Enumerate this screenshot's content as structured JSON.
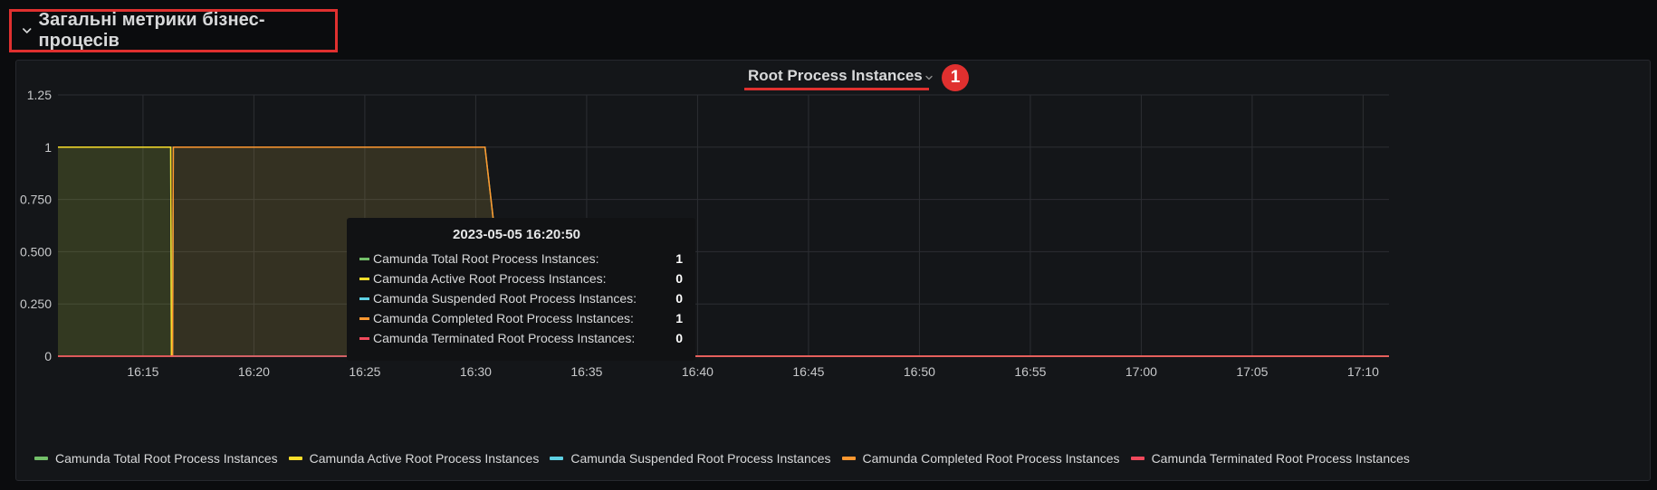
{
  "row": {
    "title": "Загальні метрики бізнес-процесів"
  },
  "panel": {
    "title": "Root Process Instances",
    "badge": "1"
  },
  "tooltip": {
    "time": "2023-05-05 16:20:50",
    "rows": [
      {
        "name": "Camunda Total Root Process Instances:",
        "value": "1",
        "color": "#73bf69"
      },
      {
        "name": "Camunda Active Root Process Instances:",
        "value": "0",
        "color": "#fade2a"
      },
      {
        "name": "Camunda Suspended Root Process Instances:",
        "value": "0",
        "color": "#5ed1e4"
      },
      {
        "name": "Camunda Completed Root Process Instances:",
        "value": "1",
        "color": "#ff9830"
      },
      {
        "name": "Camunda Terminated Root Process Instances:",
        "value": "0",
        "color": "#f2495c"
      }
    ]
  },
  "legend": [
    {
      "name": "Camunda Total Root Process Instances",
      "color": "#73bf69"
    },
    {
      "name": "Camunda Active Root Process Instances",
      "color": "#fade2a"
    },
    {
      "name": "Camunda Suspended Root Process Instances",
      "color": "#5ed1e4"
    },
    {
      "name": "Camunda Completed Root Process Instances",
      "color": "#ff9830"
    },
    {
      "name": "Camunda Terminated Root Process Instances",
      "color": "#f2495c"
    }
  ],
  "icons": {
    "row_toggle": "chevron-down-icon",
    "title_menu": "chevron-down-icon"
  },
  "chart_data": {
    "type": "area",
    "x_ticks": [
      "16:15",
      "16:20",
      "16:25",
      "16:30",
      "16:35",
      "16:40",
      "16:45",
      "16:50",
      "16:55",
      "17:00",
      "17:05",
      "17:10"
    ],
    "y_ticks": [
      "0",
      "0.250",
      "0.500",
      "0.750",
      "1",
      "1.25"
    ],
    "ylim": [
      0,
      1.25
    ],
    "xlim": [
      "16:11:10",
      "17:11:10"
    ],
    "grid": true,
    "legend_position": "bottom",
    "series": [
      {
        "name": "Camunda Total Root Process Instances",
        "color": "#73bf69",
        "x": [
          "16:11:10",
          "16:16:15",
          "16:16:17",
          "16:16:20",
          "16:16:22",
          "16:30:25",
          "16:31:30",
          "17:11:10"
        ],
        "values": [
          1,
          1,
          0,
          0,
          1,
          1,
          0,
          0
        ]
      },
      {
        "name": "Camunda Active Root Process Instances",
        "color": "#fade2a",
        "x": [
          "16:11:10",
          "16:16:15",
          "16:16:17",
          "16:31:30",
          "17:11:10"
        ],
        "values": [
          1,
          1,
          0,
          0,
          0
        ]
      },
      {
        "name": "Camunda Suspended Root Process Instances",
        "color": "#5ed1e4",
        "x": [
          "16:11:10",
          "17:11:10"
        ],
        "values": [
          0,
          0
        ]
      },
      {
        "name": "Camunda Completed Root Process Instances",
        "color": "#ff9830",
        "x": [
          "16:11:10",
          "16:16:20",
          "16:16:22",
          "16:30:25",
          "16:31:30",
          "17:11:10"
        ],
        "values": [
          0,
          0,
          1,
          1,
          0,
          0
        ]
      },
      {
        "name": "Camunda Terminated Root Process Instances",
        "color": "#f2495c",
        "x": [
          "16:11:10",
          "17:11:10"
        ],
        "values": [
          0,
          0
        ]
      }
    ]
  }
}
